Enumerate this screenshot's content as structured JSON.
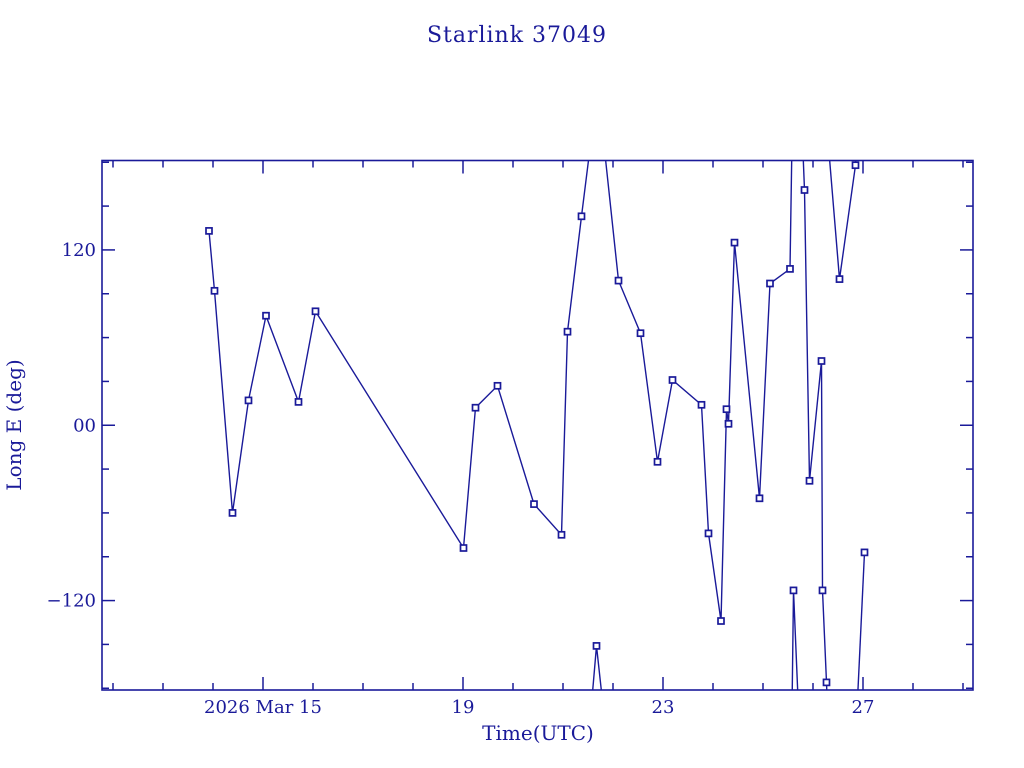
{
  "page": {
    "background": "#ffffff"
  },
  "chart_data": {
    "type": "line",
    "title": "Starlink 37049",
    "xlabel": "Time(UTC)",
    "ylabel": "Long E (deg)",
    "x_unit": "day of March 2026 (UTC)",
    "xlim": [
      11.78,
      29.2
    ],
    "ylim": [
      -181.2,
      181.2
    ],
    "grid": false,
    "legend": null,
    "accent_color": "#1a1a99",
    "marker": "open-square",
    "marker_size": 6,
    "x_major_ticks": [
      {
        "day": 15,
        "label": "2026 Mar 15"
      },
      {
        "day": 19,
        "label": "19"
      },
      {
        "day": 23,
        "label": "23"
      },
      {
        "day": 27,
        "label": "27"
      }
    ],
    "x_minor_tick_days": [
      12,
      13,
      14,
      15,
      16,
      17,
      18,
      19,
      20,
      21,
      22,
      23,
      24,
      25,
      26,
      27,
      28,
      29
    ],
    "y_major_ticks": [
      {
        "deg": 120,
        "label": "120"
      },
      {
        "deg": 0,
        "label": "00"
      },
      {
        "deg": -120,
        "label": "−120"
      }
    ],
    "y_minor_tick_degs": [
      -180,
      -150,
      -120,
      -90,
      -60,
      -30,
      0,
      30,
      60,
      90,
      120,
      150,
      180
    ],
    "points": [
      [
        13.92,
        133
      ],
      [
        14.03,
        92
      ],
      [
        14.39,
        -60
      ],
      [
        14.71,
        17
      ],
      [
        15.06,
        75
      ],
      [
        15.71,
        16
      ],
      [
        16.05,
        78
      ],
      [
        19.01,
        -84
      ],
      [
        19.25,
        12
      ],
      [
        19.69,
        27
      ],
      [
        20.42,
        -54
      ],
      [
        20.97,
        -75
      ],
      [
        21.09,
        64
      ],
      [
        21.37,
        143
      ],
      [
        21.67,
        -151
      ],
      [
        22.11,
        99
      ],
      [
        22.55,
        63
      ],
      [
        22.89,
        -25
      ],
      [
        23.19,
        31
      ],
      [
        23.77,
        14
      ],
      [
        23.91,
        -74
      ],
      [
        24.16,
        -134
      ],
      [
        24.27,
        11
      ],
      [
        24.31,
        1
      ],
      [
        24.43,
        125
      ],
      [
        24.93,
        -50
      ],
      [
        25.14,
        97
      ],
      [
        25.54,
        107
      ],
      [
        25.61,
        -113
      ],
      [
        25.83,
        161
      ],
      [
        25.93,
        -38
      ],
      [
        26.17,
        44
      ],
      [
        26.19,
        -113
      ],
      [
        26.27,
        -176
      ],
      [
        26.53,
        100
      ],
      [
        26.85,
        178
      ],
      [
        27.03,
        -87
      ]
    ],
    "line_segments_note": "vertices with |deg|>180 are off-scale wrap points where longitude crosses the +/-180 boundary; they are clipped at the plot frame",
    "line_segments": [
      [
        [
          13.92,
          133
        ],
        [
          14.03,
          92
        ],
        [
          14.39,
          -60
        ],
        [
          14.71,
          17
        ],
        [
          15.06,
          75
        ],
        [
          15.71,
          16
        ],
        [
          16.05,
          78
        ],
        [
          19.01,
          -84
        ],
        [
          19.25,
          12
        ],
        [
          19.69,
          27
        ],
        [
          20.42,
          -54
        ],
        [
          20.97,
          -75
        ],
        [
          21.09,
          64
        ],
        [
          21.37,
          143
        ],
        [
          21.56,
          195
        ]
      ],
      [
        [
          21.56,
          -195
        ],
        [
          21.67,
          -151
        ],
        [
          21.81,
          -195
        ]
      ],
      [
        [
          21.81,
          195
        ],
        [
          22.11,
          99
        ],
        [
          22.55,
          63
        ],
        [
          22.89,
          -25
        ],
        [
          23.19,
          31
        ],
        [
          23.77,
          14
        ],
        [
          23.91,
          -74
        ],
        [
          24.16,
          -134
        ],
        [
          24.27,
          11
        ],
        [
          24.31,
          1
        ],
        [
          24.43,
          125
        ],
        [
          24.93,
          -50
        ],
        [
          25.14,
          97
        ],
        [
          25.54,
          107
        ],
        [
          25.58,
          195
        ]
      ],
      [
        [
          25.58,
          -195
        ],
        [
          25.61,
          -113
        ],
        [
          25.71,
          -195
        ]
      ],
      [
        [
          25.79,
          195
        ],
        [
          25.83,
          161
        ],
        [
          25.93,
          -38
        ],
        [
          26.17,
          44
        ],
        [
          26.19,
          -113
        ],
        [
          26.27,
          -176
        ],
        [
          26.29,
          -195
        ]
      ],
      [
        [
          26.3,
          195
        ],
        [
          26.53,
          100
        ],
        [
          26.85,
          178
        ],
        [
          26.87,
          195
        ]
      ],
      [
        [
          26.88,
          -195
        ],
        [
          27.03,
          -87
        ]
      ]
    ]
  }
}
